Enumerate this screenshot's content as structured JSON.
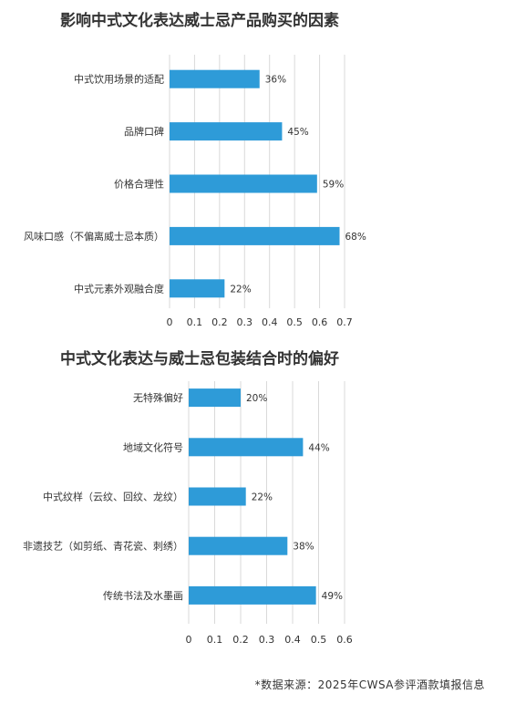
{
  "chart_data": [
    {
      "type": "bar",
      "orientation": "horizontal",
      "title": "影响中式文化表达威士忌产品购买的因素",
      "categories": [
        "中式饮用场景的适配",
        "品牌口碑",
        "价格合理性",
        "风味口感（不偏离威士忌本质）",
        "中式元素外观融合度"
      ],
      "values": [
        0.36,
        0.45,
        0.59,
        0.68,
        0.22
      ],
      "value_labels": [
        "36%",
        "45%",
        "59%",
        "68%",
        "22%"
      ],
      "xticks": [
        "0",
        "0.1",
        "0.2",
        "0.3",
        "0.4",
        "0.5",
        "0.6",
        "0.7"
      ],
      "xlim": [
        0,
        0.7
      ],
      "grid": true,
      "color": "#2e9bd8"
    },
    {
      "type": "bar",
      "orientation": "horizontal",
      "title": "中式文化表达与威士忌包装结合时的偏好",
      "categories": [
        "无特殊偏好",
        "地域文化符号",
        "中式纹样（云纹、回纹、龙纹）",
        "非遗技艺（如剪纸、青花瓷、刺绣）",
        "传统书法及水墨画"
      ],
      "values": [
        0.2,
        0.44,
        0.22,
        0.38,
        0.49
      ],
      "value_labels": [
        "20%",
        "44%",
        "22%",
        "38%",
        "49%"
      ],
      "xticks": [
        "0",
        "0.1",
        "0.2",
        "0.3",
        "0.4",
        "0.5",
        "0.6"
      ],
      "xlim": [
        0,
        0.6
      ],
      "grid": true,
      "color": "#2e9bd8"
    }
  ],
  "footer": {
    "source": "*数据来源：2025年CWSA参评酒款填报信息"
  }
}
